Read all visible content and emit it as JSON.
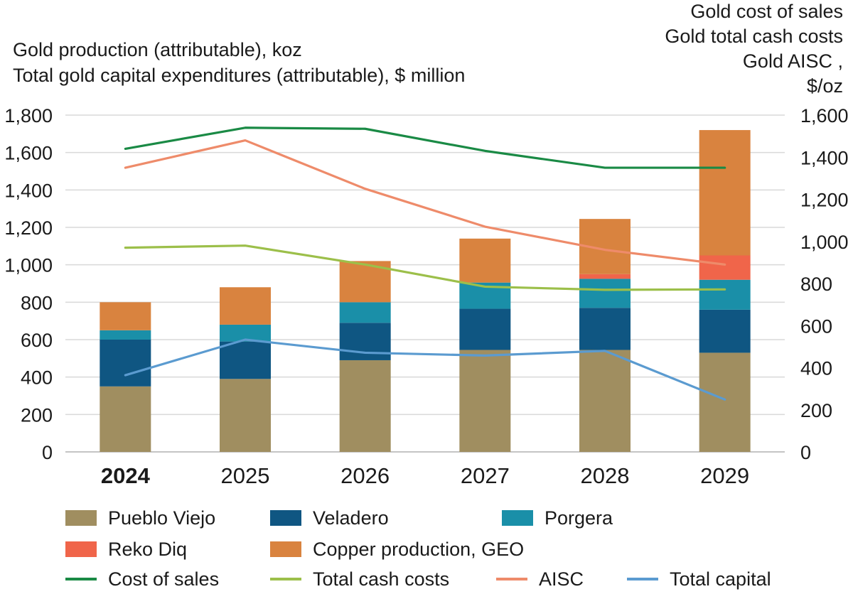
{
  "chart_data": {
    "type": "bar+line",
    "left_title": [
      "Gold production (attributable), koz",
      "Total gold capital expenditures  (attributable), $ million"
    ],
    "right_title": [
      "Gold cost of sales",
      "Gold total cash costs",
      "Gold AISC ,",
      "$/oz"
    ],
    "categories": [
      "2024",
      "2025",
      "2026",
      "2027",
      "2028",
      "2029"
    ],
    "highlight_category": "2024",
    "left_axis": {
      "min": 0,
      "max": 1800,
      "ticks": [
        "0",
        "200",
        "400",
        "600",
        "800",
        "1,000",
        "1,200",
        "1,400",
        "1,600",
        "1,800"
      ]
    },
    "right_axis": {
      "min": 0,
      "max": 1600,
      "ticks": [
        "0",
        "200",
        "400",
        "600",
        "800",
        "1,000",
        "1,200",
        "1,400",
        "1,600"
      ]
    },
    "bar_series": [
      {
        "name": "Pueblo Viejo",
        "color": "#a08e60",
        "values": [
          350,
          390,
          490,
          545,
          545,
          530
        ]
      },
      {
        "name": "Veladero",
        "color": "#0f5682",
        "values": [
          250,
          200,
          200,
          220,
          225,
          230
        ]
      },
      {
        "name": "Porgera",
        "color": "#1a8fa8",
        "values": [
          50,
          90,
          110,
          140,
          155,
          160
        ]
      },
      {
        "name": "Reko Diq",
        "color": "#f0654a",
        "values": [
          0,
          0,
          0,
          0,
          25,
          130
        ]
      },
      {
        "name": "Copper production, GEO",
        "color": "#d9833f",
        "values": [
          150,
          200,
          220,
          235,
          295,
          670
        ]
      }
    ],
    "line_series": [
      {
        "name": "Cost of sales",
        "axis": "right",
        "color": "#1a8a45",
        "values": [
          1440,
          1540,
          1535,
          1430,
          1350,
          1350
        ]
      },
      {
        "name": "Total cash costs",
        "axis": "right",
        "color": "#9cbf4a",
        "values": [
          970,
          980,
          890,
          785,
          770,
          772
        ]
      },
      {
        "name": "AISC",
        "axis": "right",
        "color": "#ee8b6a",
        "values": [
          1350,
          1480,
          1250,
          1070,
          960,
          890
        ]
      },
      {
        "name": "Total capital",
        "axis": "left",
        "color": "#5b9bd0",
        "values": [
          410,
          600,
          530,
          515,
          540,
          280
        ]
      }
    ]
  },
  "legend": {
    "pueblo_viejo": "Pueblo Viejo",
    "veladero": "Veladero",
    "porgera": "Porgera",
    "reko_diq": "Reko Diq",
    "copper": "Copper production, GEO",
    "cost_of_sales": "Cost of sales",
    "total_cash_costs": "Total cash costs",
    "aisc": "AISC",
    "total_capital": "Total capital"
  }
}
